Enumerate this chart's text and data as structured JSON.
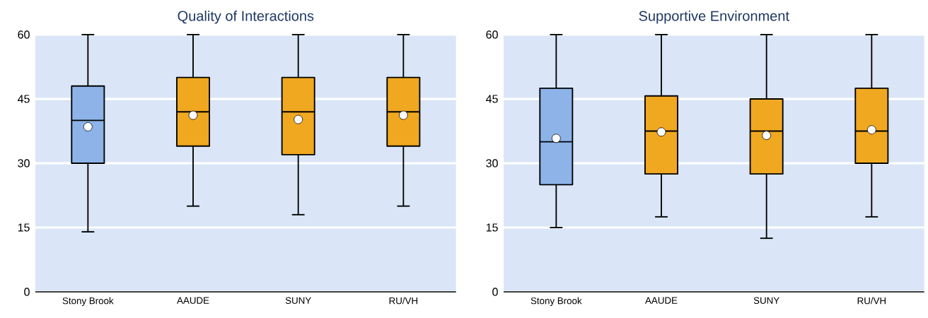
{
  "chart_data": [
    {
      "type": "box",
      "title": "Quality of Interactions",
      "categories": [
        "Stony Brook",
        "AAUDE",
        "SUNY",
        "RU/VH"
      ],
      "colors": [
        "#8db3e8",
        "#f0a820",
        "#f0a820",
        "#f0a820"
      ],
      "ylim": [
        0,
        60
      ],
      "yticks": [
        0,
        15,
        30,
        45,
        60
      ],
      "grid": "y",
      "boxes": [
        {
          "low": 14,
          "q1": 30,
          "median": 40,
          "q3": 48,
          "high": 60,
          "mean": 38.5
        },
        {
          "low": 20,
          "q1": 34,
          "median": 42,
          "q3": 50,
          "high": 60,
          "mean": 41.2
        },
        {
          "low": 18,
          "q1": 32,
          "median": 42,
          "q3": 50,
          "high": 60,
          "mean": 40.2
        },
        {
          "low": 20,
          "q1": 34,
          "median": 42,
          "q3": 50,
          "high": 60,
          "mean": 41.2
        }
      ]
    },
    {
      "type": "box",
      "title": "Supportive Environment",
      "categories": [
        "Stony Brook",
        "AAUDE",
        "SUNY",
        "RU/VH"
      ],
      "colors": [
        "#8db3e8",
        "#f0a820",
        "#f0a820",
        "#f0a820"
      ],
      "ylim": [
        0,
        60
      ],
      "yticks": [
        0,
        15,
        30,
        45,
        60
      ],
      "grid": "y",
      "boxes": [
        {
          "low": 15,
          "q1": 25,
          "median": 35,
          "q3": 47.5,
          "high": 60,
          "mean": 35.8
        },
        {
          "low": 17.5,
          "q1": 27.5,
          "median": 37.5,
          "q3": 45.7,
          "high": 60,
          "mean": 37.3
        },
        {
          "low": 12.5,
          "q1": 27.5,
          "median": 37.5,
          "q3": 45,
          "high": 60,
          "mean": 36.5
        },
        {
          "low": 17.5,
          "q1": 30,
          "median": 37.5,
          "q3": 47.5,
          "high": 60,
          "mean": 37.8
        }
      ]
    }
  ]
}
